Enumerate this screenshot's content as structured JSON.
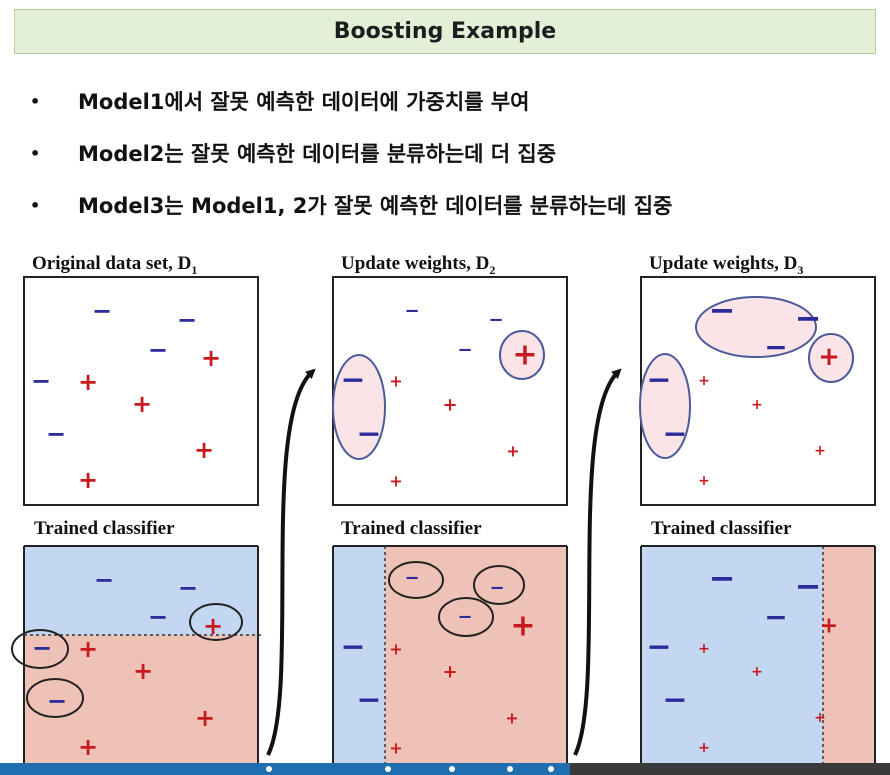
{
  "title": "Boosting Example",
  "bullets": [
    "Model1에서 잘못 예측한 데이터에 가중치를 부여",
    "Model2는 잘못 예측한 데이터를 분류하는데 더 집중",
    "Model3는 Model1, 2가 잘못 예측한 데이터를 분류하는데 집중"
  ],
  "bullet_glyph": "•",
  "panels": [
    {
      "label": "Original data set,  D",
      "subscript": "1"
    },
    {
      "label": "Update weights,  D",
      "subscript": "2"
    },
    {
      "label": "Update weights,  D",
      "subscript": "3"
    }
  ],
  "classifier_label": "Trained classifier",
  "symbols": {
    "minus": "−",
    "plus": "+"
  },
  "colors": {
    "minus": "#2b2b9a",
    "plus": "#c8191e",
    "region_blue": "#c3d7f3",
    "region_red": "#efc2b8",
    "weight_fill": "#fbe4e8",
    "weight_stroke": "#4a5a9a",
    "title_bg": "#e3efd6"
  },
  "playback_progress": 0.64
}
